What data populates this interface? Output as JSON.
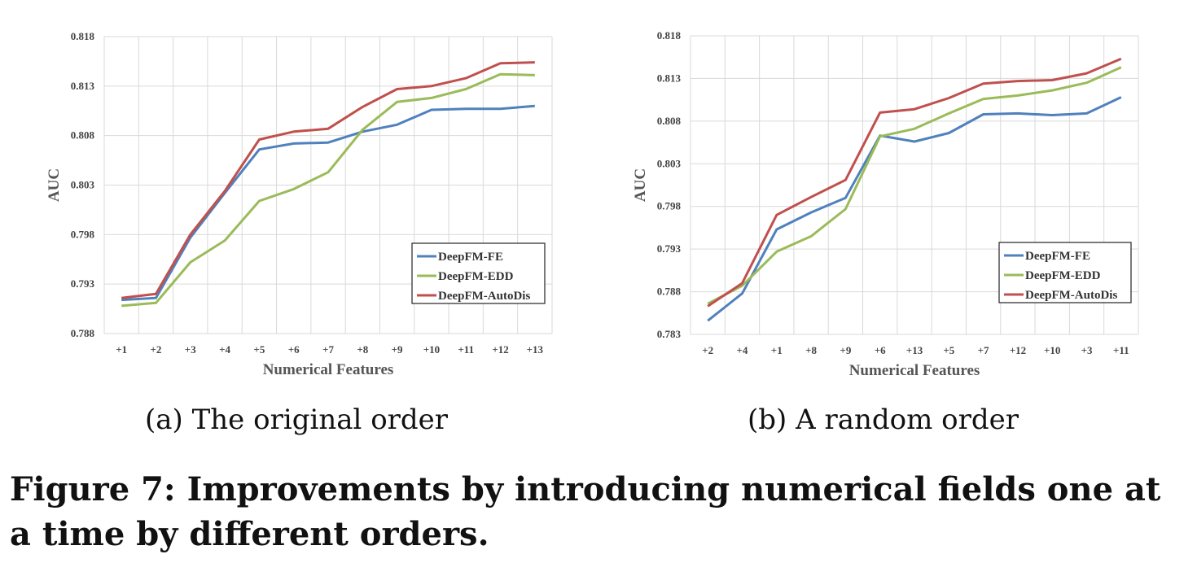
{
  "figure": {
    "caption": "Figure 7: Improvements by introducing numerical fields one at a time by different orders.",
    "subcaption_a": "(a)  The original order",
    "subcaption_b": "(b)  A random order"
  },
  "colors": {
    "DeepFM-FE": "#4f81bd",
    "DeepFM-EDD": "#9bbb59",
    "DeepFM-AutoDis": "#c0504d"
  },
  "chart_data": [
    {
      "type": "line",
      "title": "",
      "xlabel": "Numerical Features",
      "ylabel": "AUC",
      "ylim": [
        0.788,
        0.818
      ],
      "yticks": [
        "0.788",
        "0.793",
        "0.798",
        "0.803",
        "0.808",
        "0.813",
        "0.818"
      ],
      "grid": true,
      "legend_position": "bottom-right",
      "categories": [
        "+1",
        "+2",
        "+3",
        "+4",
        "+5",
        "+6",
        "+7",
        "+8",
        "+9",
        "+10",
        "+11",
        "+12",
        "+13"
      ],
      "series": [
        {
          "name": "DeepFM-FE",
          "values": [
            0.7914,
            0.7916,
            0.7977,
            0.8022,
            0.8066,
            0.8072,
            0.8073,
            0.8084,
            0.8091,
            0.8106,
            0.8107,
            0.8107,
            0.811
          ]
        },
        {
          "name": "DeepFM-EDD",
          "values": [
            0.7908,
            0.7911,
            0.7952,
            0.7974,
            0.8014,
            0.8026,
            0.8043,
            0.8086,
            0.8114,
            0.8118,
            0.8127,
            0.8142,
            0.8141
          ]
        },
        {
          "name": "DeepFM-AutoDis",
          "values": [
            0.7916,
            0.792,
            0.798,
            0.8024,
            0.8076,
            0.8084,
            0.8087,
            0.8109,
            0.8127,
            0.813,
            0.8138,
            0.8153,
            0.8154
          ]
        }
      ]
    },
    {
      "type": "line",
      "title": "",
      "xlabel": "Numerical Features",
      "ylabel": "AUC",
      "ylim": [
        0.783,
        0.818
      ],
      "yticks": [
        "0.783",
        "0.788",
        "0.793",
        "0.798",
        "0.803",
        "0.808",
        "0.813",
        "0.818"
      ],
      "grid": true,
      "legend_position": "bottom-right",
      "categories": [
        "+2",
        "+4",
        "+1",
        "+8",
        "+9",
        "+6",
        "+13",
        "+5",
        "+7",
        "+12",
        "+10",
        "+3",
        "+11"
      ],
      "series": [
        {
          "name": "DeepFM-FE",
          "values": [
            0.7846,
            0.7878,
            0.7953,
            0.7973,
            0.799,
            0.8063,
            0.8056,
            0.8066,
            0.8088,
            0.8089,
            0.8087,
            0.8089,
            0.8108
          ]
        },
        {
          "name": "DeepFM-EDD",
          "values": [
            0.7866,
            0.7887,
            0.7927,
            0.7945,
            0.7977,
            0.8062,
            0.8071,
            0.8089,
            0.8106,
            0.811,
            0.8116,
            0.8125,
            0.8143
          ]
        },
        {
          "name": "DeepFM-AutoDis",
          "values": [
            0.7863,
            0.789,
            0.797,
            0.7991,
            0.8011,
            0.809,
            0.8094,
            0.8107,
            0.8124,
            0.8127,
            0.8128,
            0.8136,
            0.8153
          ]
        }
      ]
    }
  ]
}
